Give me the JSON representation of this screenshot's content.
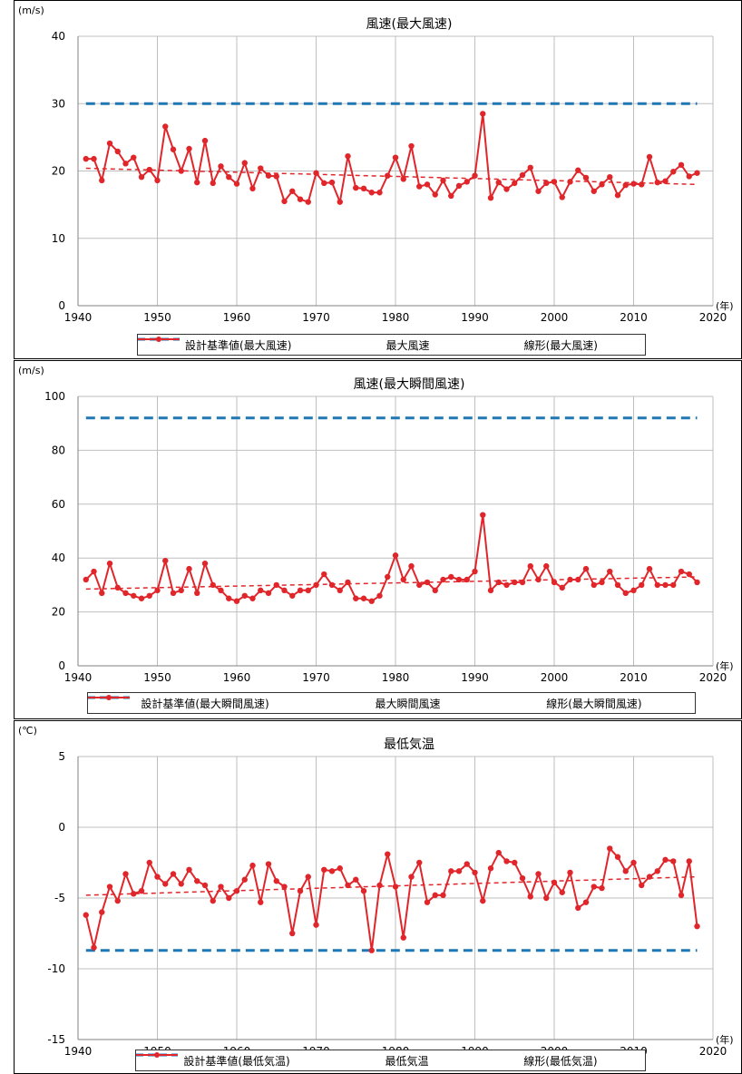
{
  "colors": {
    "design": "#1f77b4",
    "series": "#e0262b",
    "trend": "#e0262b",
    "grid": "#bfbfbf",
    "axis": "#808080"
  },
  "chart_data": [
    {
      "type": "line",
      "title": "風速(最大風速)",
      "unit_label": "(m/s)",
      "x_unit_label": "(年)",
      "xlim": [
        1940,
        2020
      ],
      "x_ticks": [
        1940,
        1950,
        1960,
        1970,
        1980,
        1990,
        2000,
        2010,
        2020
      ],
      "ylim": [
        0,
        40
      ],
      "y_ticks": [
        0,
        10,
        20,
        30,
        40
      ],
      "grid": true,
      "legend_position": "bottom",
      "legend": [
        "設計基準値(最大風速)",
        "最大風速",
        "線形(最大風速)"
      ],
      "series": [
        {
          "name": "設計基準値(最大風速)",
          "style": "dashed",
          "x": [
            1941,
            2018
          ],
          "values": [
            30,
            30
          ]
        },
        {
          "name": "最大風速",
          "style": "line-marker",
          "x": [
            1941,
            1942,
            1943,
            1944,
            1945,
            1946,
            1947,
            1948,
            1949,
            1950,
            1951,
            1952,
            1953,
            1954,
            1955,
            1956,
            1957,
            1958,
            1959,
            1960,
            1961,
            1962,
            1963,
            1964,
            1965,
            1966,
            1967,
            1968,
            1969,
            1970,
            1971,
            1972,
            1973,
            1974,
            1975,
            1976,
            1977,
            1978,
            1979,
            1980,
            1981,
            1982,
            1983,
            1984,
            1985,
            1986,
            1987,
            1988,
            1989,
            1990,
            1991,
            1992,
            1993,
            1994,
            1995,
            1996,
            1997,
            1998,
            1999,
            2000,
            2001,
            2002,
            2003,
            2004,
            2005,
            2006,
            2007,
            2008,
            2009,
            2010,
            2011,
            2012,
            2013,
            2014,
            2015,
            2016,
            2017,
            2018
          ],
          "values": [
            21.8,
            21.8,
            18.6,
            24.1,
            22.9,
            21.1,
            22.0,
            19.1,
            20.2,
            18.6,
            26.6,
            23.2,
            20.0,
            23.3,
            18.3,
            24.5,
            18.2,
            20.7,
            19.1,
            18.1,
            21.2,
            17.4,
            20.4,
            19.3,
            19.2,
            15.5,
            17.0,
            15.8,
            15.4,
            19.7,
            18.2,
            18.3,
            15.4,
            22.2,
            17.5,
            17.4,
            16.8,
            16.8,
            19.3,
            22.0,
            18.8,
            23.7,
            17.7,
            18.0,
            16.5,
            18.6,
            16.3,
            17.8,
            18.4,
            19.3,
            28.5,
            16.0,
            18.3,
            17.3,
            18.2,
            19.4,
            20.5,
            17.0,
            18.2,
            18.4,
            16.1,
            18.4,
            20.1,
            19.0,
            17.0,
            18.0,
            19.1,
            16.4,
            17.9,
            18.1,
            18.0,
            22.1,
            18.3,
            18.5,
            19.9,
            20.9,
            19.2,
            19.7
          ]
        },
        {
          "name": "線形(最大風速)",
          "style": "dashed",
          "x": [
            1941,
            2018
          ],
          "values": [
            20.4,
            18.0
          ]
        }
      ]
    },
    {
      "type": "line",
      "title": "風速(最大瞬間風速)",
      "unit_label": "(m/s)",
      "x_unit_label": "(年)",
      "xlim": [
        1940,
        2020
      ],
      "x_ticks": [
        1940,
        1950,
        1960,
        1970,
        1980,
        1990,
        2000,
        2010,
        2020
      ],
      "ylim": [
        0,
        100
      ],
      "y_ticks": [
        0,
        20,
        40,
        60,
        80,
        100
      ],
      "grid": true,
      "legend_position": "bottom",
      "legend": [
        "設計基準値(最大瞬間風速)",
        "最大瞬間風速",
        "線形(最大瞬間風速)"
      ],
      "series": [
        {
          "name": "設計基準値(最大瞬間風速)",
          "style": "dashed",
          "x": [
            1941,
            2018
          ],
          "values": [
            92,
            92
          ]
        },
        {
          "name": "最大瞬間風速",
          "style": "line-marker",
          "x": [
            1941,
            1942,
            1943,
            1944,
            1945,
            1946,
            1947,
            1948,
            1949,
            1950,
            1951,
            1952,
            1953,
            1954,
            1955,
            1956,
            1957,
            1958,
            1959,
            1960,
            1961,
            1962,
            1963,
            1964,
            1965,
            1966,
            1967,
            1968,
            1969,
            1970,
            1971,
            1972,
            1973,
            1974,
            1975,
            1976,
            1977,
            1978,
            1979,
            1980,
            1981,
            1982,
            1983,
            1984,
            1985,
            1986,
            1987,
            1988,
            1989,
            1990,
            1991,
            1992,
            1993,
            1994,
            1995,
            1996,
            1997,
            1998,
            1999,
            2000,
            2001,
            2002,
            2003,
            2004,
            2005,
            2006,
            2007,
            2008,
            2009,
            2010,
            2011,
            2012,
            2013,
            2014,
            2015,
            2016,
            2017,
            2018
          ],
          "values": [
            32,
            35,
            27,
            38,
            29,
            27,
            26,
            25,
            26,
            28,
            39,
            27,
            28,
            36,
            27,
            38,
            30,
            28,
            25,
            24,
            26,
            25,
            28,
            27,
            30,
            28,
            26,
            28,
            28,
            30,
            34,
            30,
            28,
            31,
            25,
            25,
            24,
            26,
            33,
            41,
            32,
            37,
            30,
            31,
            28,
            32,
            33,
            32,
            32,
            35,
            56,
            28,
            31,
            30,
            31,
            31,
            37,
            32,
            37,
            31,
            29,
            32,
            32,
            36,
            30,
            31,
            35,
            30,
            27,
            28,
            30,
            36,
            30,
            30,
            30,
            35,
            34,
            31
          ]
        },
        {
          "name": "線形(最大瞬間風速)",
          "style": "dashed",
          "x": [
            1941,
            2018
          ],
          "values": [
            28.5,
            33.0
          ]
        }
      ]
    },
    {
      "type": "line",
      "title": "最低気温",
      "unit_label": "(℃)",
      "x_unit_label": "(年)",
      "xlim": [
        1940,
        2020
      ],
      "x_ticks": [
        1940,
        1950,
        1960,
        1970,
        1980,
        1990,
        2000,
        2010,
        2020
      ],
      "ylim": [
        -15,
        5
      ],
      "y_ticks": [
        -15,
        -10,
        -5,
        0,
        5
      ],
      "grid": true,
      "legend_position": "bottom",
      "legend": [
        "設計基準値(最低気温)",
        "最低気温",
        "線形(最低気温)"
      ],
      "series": [
        {
          "name": "設計基準値(最低気温)",
          "style": "dashed",
          "x": [
            1941,
            2018
          ],
          "values": [
            -8.7,
            -8.7
          ]
        },
        {
          "name": "最低気温",
          "style": "line-marker",
          "x": [
            1941,
            1942,
            1943,
            1944,
            1945,
            1946,
            1947,
            1948,
            1949,
            1950,
            1951,
            1952,
            1953,
            1954,
            1955,
            1956,
            1957,
            1958,
            1959,
            1960,
            1961,
            1962,
            1963,
            1964,
            1965,
            1966,
            1967,
            1968,
            1969,
            1970,
            1971,
            1972,
            1973,
            1974,
            1975,
            1976,
            1977,
            1978,
            1979,
            1980,
            1981,
            1982,
            1983,
            1984,
            1985,
            1986,
            1987,
            1988,
            1989,
            1990,
            1991,
            1992,
            1993,
            1994,
            1995,
            1996,
            1997,
            1998,
            1999,
            2000,
            2001,
            2002,
            2003,
            2004,
            2005,
            2006,
            2007,
            2008,
            2009,
            2010,
            2011,
            2012,
            2013,
            2014,
            2015,
            2016,
            2017,
            2018
          ],
          "values": [
            -6.2,
            -8.5,
            -6.0,
            -4.2,
            -5.2,
            -3.3,
            -4.7,
            -4.5,
            -2.5,
            -3.5,
            -4.0,
            -3.3,
            -4.0,
            -3.0,
            -3.8,
            -4.1,
            -5.2,
            -4.2,
            -5.0,
            -4.5,
            -3.7,
            -2.7,
            -5.3,
            -2.6,
            -3.8,
            -4.2,
            -7.5,
            -4.5,
            -3.5,
            -6.9,
            -3.0,
            -3.1,
            -2.9,
            -4.1,
            -3.7,
            -4.5,
            -8.7,
            -4.1,
            -1.9,
            -4.2,
            -7.8,
            -3.5,
            -2.5,
            -5.3,
            -4.8,
            -4.8,
            -3.1,
            -3.1,
            -2.6,
            -3.2,
            -5.2,
            -2.9,
            -1.8,
            -2.4,
            -2.5,
            -3.6,
            -4.9,
            -3.3,
            -5.0,
            -3.9,
            -4.6,
            -3.2,
            -5.7,
            -5.3,
            -4.2,
            -4.3,
            -1.5,
            -2.1,
            -3.1,
            -2.5,
            -4.1,
            -3.5,
            -3.1,
            -2.3,
            -2.4,
            -4.8,
            -2.4,
            -7.0
          ]
        },
        {
          "name": "線形(最低気温)",
          "style": "dashed",
          "x": [
            1941,
            2018
          ],
          "values": [
            -4.8,
            -3.5
          ]
        }
      ]
    }
  ]
}
